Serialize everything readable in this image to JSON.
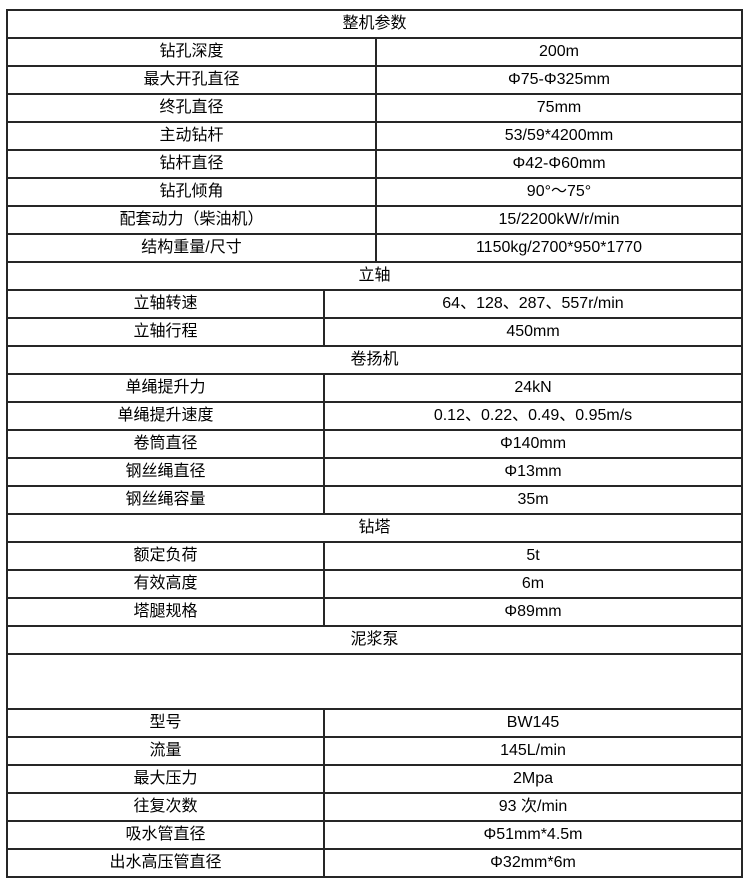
{
  "page": {
    "background": "#ffffff",
    "border_color": "#262626",
    "text_color": "#000000"
  },
  "table": {
    "sections": [
      {
        "header": "整机参数",
        "label_col": "wide",
        "rows": [
          {
            "label": "钻孔深度",
            "value": "200m"
          },
          {
            "label": "最大开孔直径",
            "value": "Φ75-Φ325mm"
          },
          {
            "label": "终孔直径",
            "value": "75mm"
          },
          {
            "label": "主动钻杆",
            "value": "53/59*4200mm"
          },
          {
            "label": "钻杆直径",
            "value": "Φ42-Φ60mm"
          },
          {
            "label": "钻孔倾角",
            "value": "90°～75°"
          },
          {
            "label": "配套动力（柴油机）",
            "value": "15/2200kW/r/min"
          },
          {
            "label": "结构重量/尺寸",
            "value": "1150kg/2700*950*1770"
          }
        ]
      },
      {
        "header": "立轴",
        "label_col": "narrow",
        "rows": [
          {
            "label": "立轴转速",
            "value": "64、128、287、557r/min"
          },
          {
            "label": "立轴行程",
            "value": "450mm"
          }
        ]
      },
      {
        "header": "卷扬机",
        "label_col": "narrow",
        "rows": [
          {
            "label": "单绳提升力",
            "value": "24kN"
          },
          {
            "label": "单绳提升速度",
            "value": "0.12、0.22、0.49、0.95m/s"
          },
          {
            "label": "卷筒直径",
            "value": "Φ140mm"
          },
          {
            "label": "钢丝绳直径",
            "value": "Φ13mm"
          },
          {
            "label": "钢丝绳容量",
            "value": "35m"
          }
        ]
      },
      {
        "header": "钻塔",
        "label_col": "narrow",
        "rows": [
          {
            "label": "额定负荷",
            "value": "5t"
          },
          {
            "label": "有效高度",
            "value": "6m"
          },
          {
            "label": "塔腿规格",
            "value": "Φ89mm"
          }
        ]
      },
      {
        "header": "泥浆泵",
        "label_col": "narrow",
        "spacer_after_header": true,
        "rows": [
          {
            "label": "型号",
            "value": "BW145"
          },
          {
            "label": "流量",
            "value": "145L/min"
          },
          {
            "label": "最大压力",
            "value": "2Mpa"
          },
          {
            "label": "往复次数",
            "value": "93 次/min"
          },
          {
            "label": "吸水管直径",
            "value": "Φ51mm*4.5m"
          },
          {
            "label": "出水高压管直径",
            "value": "Φ32mm*6m"
          }
        ]
      }
    ]
  }
}
